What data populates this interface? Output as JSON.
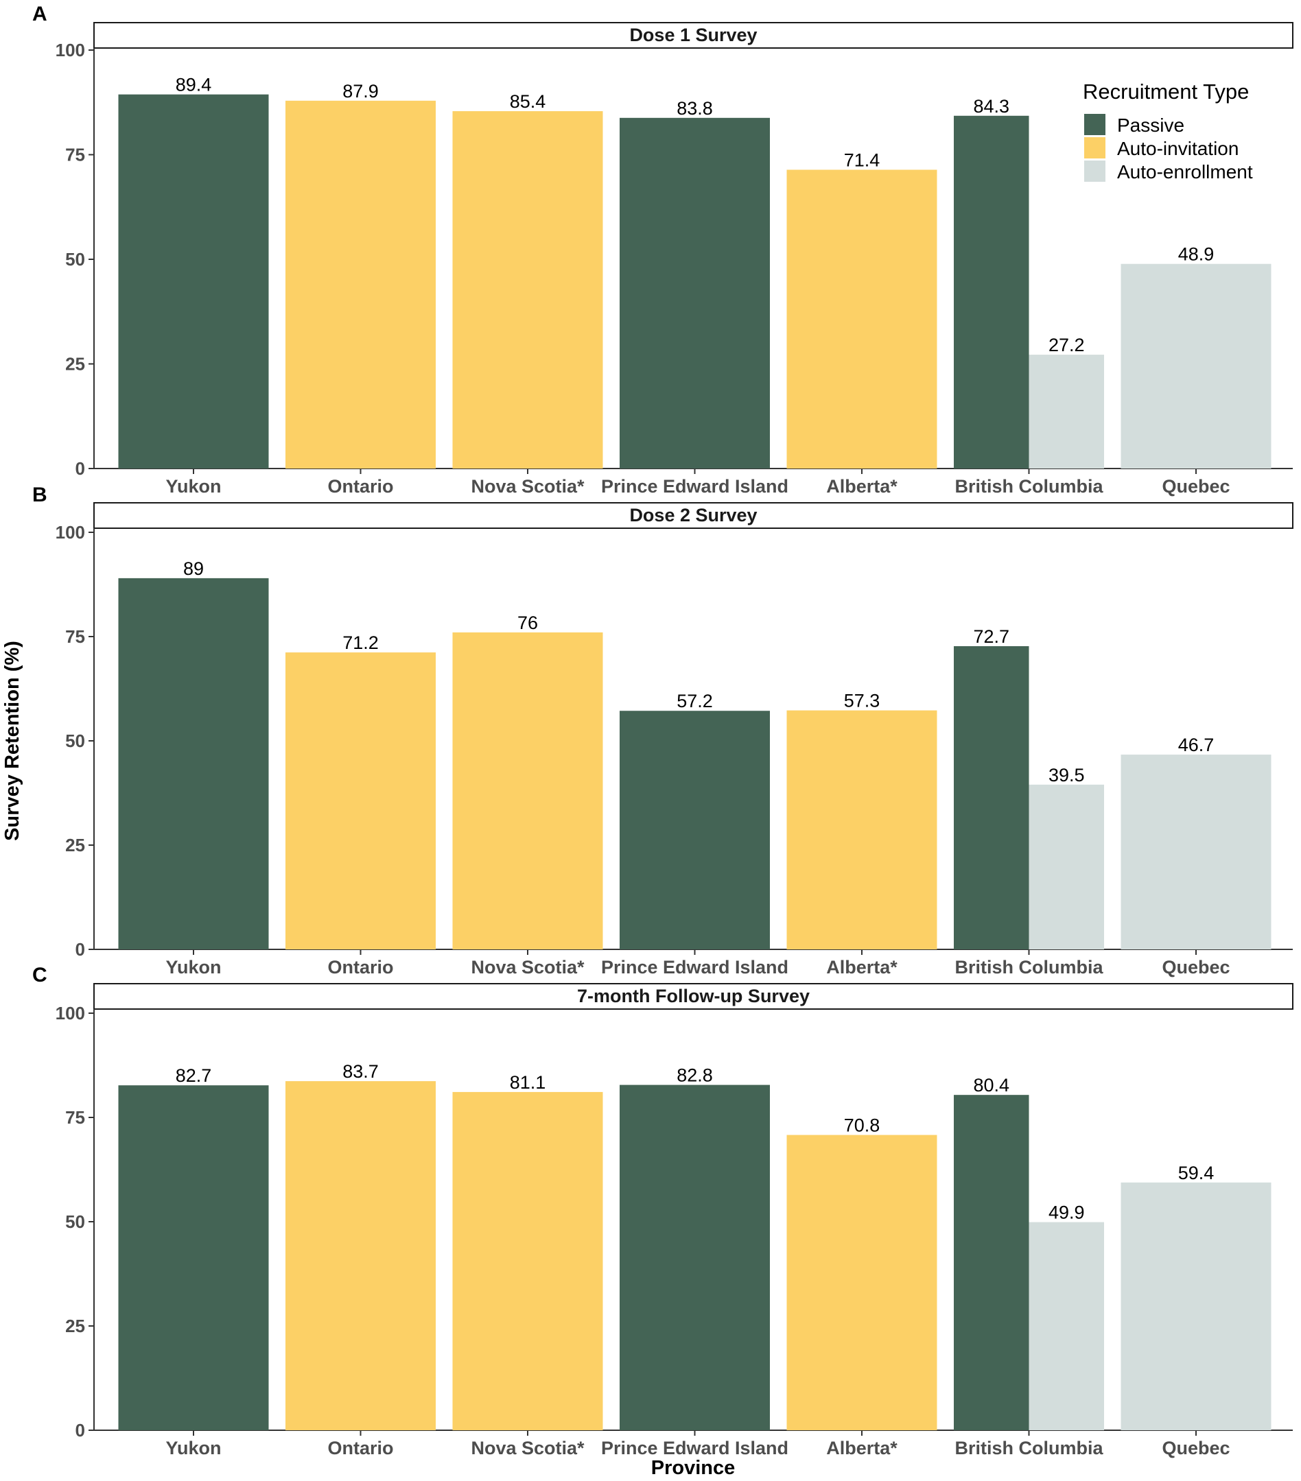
{
  "figure": {
    "ylabel": "Survey Retention (%)",
    "xlabel": "Province",
    "legend": {
      "title": "Recruitment Type",
      "entries": [
        {
          "key": "passive",
          "label": "Passive"
        },
        {
          "key": "auto_invitation",
          "label": "Auto-invitation"
        },
        {
          "key": "auto_enrollment",
          "label": "Auto-enrollment"
        }
      ],
      "placement": "top-right of panel A"
    },
    "colors": {
      "passive": "#446455",
      "auto_invitation": "#FCD066",
      "auto_enrollment": "#D3DDDC",
      "axis": "#333333",
      "tick_text": "#4d4d4d"
    }
  },
  "chart_data": [
    {
      "type": "bar",
      "panel_letter": "A",
      "title": "Dose 1 Survey",
      "categories": [
        "Yukon",
        "Ontario",
        "Nova Scotia*",
        "Prince Edward Island",
        "Alberta*",
        "British Columbia",
        "Quebec"
      ],
      "yticks": [
        "0",
        "25",
        "50",
        "75",
        "100"
      ],
      "ylim": [
        0,
        100
      ],
      "bars": [
        {
          "category": "Yukon",
          "type": "passive",
          "value": 89.4,
          "label": "89.4"
        },
        {
          "category": "Ontario",
          "type": "auto_invitation",
          "value": 87.9,
          "label": "87.9"
        },
        {
          "category": "Nova Scotia*",
          "type": "auto_invitation",
          "value": 85.4,
          "label": "85.4"
        },
        {
          "category": "Prince Edward Island",
          "type": "passive",
          "value": 83.8,
          "label": "83.8"
        },
        {
          "category": "Alberta*",
          "type": "auto_invitation",
          "value": 71.4,
          "label": "71.4"
        },
        {
          "category": "British Columbia",
          "type": "passive",
          "value": 84.3,
          "label": "84.3"
        },
        {
          "category": "British Columbia",
          "type": "auto_enrollment",
          "value": 27.2,
          "label": "27.2"
        },
        {
          "category": "Quebec",
          "type": "auto_enrollment",
          "value": 48.9,
          "label": "48.9"
        }
      ]
    },
    {
      "type": "bar",
      "panel_letter": "B",
      "title": "Dose 2 Survey",
      "categories": [
        "Yukon",
        "Ontario",
        "Nova Scotia*",
        "Prince Edward Island",
        "Alberta*",
        "British Columbia",
        "Quebec"
      ],
      "yticks": [
        "0",
        "25",
        "50",
        "75",
        "100"
      ],
      "ylim": [
        0,
        100
      ],
      "bars": [
        {
          "category": "Yukon",
          "type": "passive",
          "value": 89,
          "label": "89"
        },
        {
          "category": "Ontario",
          "type": "auto_invitation",
          "value": 71.2,
          "label": "71.2"
        },
        {
          "category": "Nova Scotia*",
          "type": "auto_invitation",
          "value": 76,
          "label": "76"
        },
        {
          "category": "Prince Edward Island",
          "type": "passive",
          "value": 57.2,
          "label": "57.2"
        },
        {
          "category": "Alberta*",
          "type": "auto_invitation",
          "value": 57.3,
          "label": "57.3"
        },
        {
          "category": "British Columbia",
          "type": "passive",
          "value": 72.7,
          "label": "72.7"
        },
        {
          "category": "British Columbia",
          "type": "auto_enrollment",
          "value": 39.5,
          "label": "39.5"
        },
        {
          "category": "Quebec",
          "type": "auto_enrollment",
          "value": 46.7,
          "label": "46.7"
        }
      ]
    },
    {
      "type": "bar",
      "panel_letter": "C",
      "title": "7-month Follow-up Survey",
      "categories": [
        "Yukon",
        "Ontario",
        "Nova Scotia*",
        "Prince Edward Island",
        "Alberta*",
        "British Columbia",
        "Quebec"
      ],
      "yticks": [
        "0",
        "25",
        "50",
        "75",
        "100"
      ],
      "ylim": [
        0,
        100
      ],
      "bars": [
        {
          "category": "Yukon",
          "type": "passive",
          "value": 82.7,
          "label": "82.7"
        },
        {
          "category": "Ontario",
          "type": "auto_invitation",
          "value": 83.7,
          "label": "83.7"
        },
        {
          "category": "Nova Scotia*",
          "type": "auto_invitation",
          "value": 81.1,
          "label": "81.1"
        },
        {
          "category": "Prince Edward Island",
          "type": "passive",
          "value": 82.8,
          "label": "82.8"
        },
        {
          "category": "Alberta*",
          "type": "auto_invitation",
          "value": 70.8,
          "label": "70.8"
        },
        {
          "category": "British Columbia",
          "type": "passive",
          "value": 80.4,
          "label": "80.4"
        },
        {
          "category": "British Columbia",
          "type": "auto_enrollment",
          "value": 49.9,
          "label": "49.9"
        },
        {
          "category": "Quebec",
          "type": "auto_enrollment",
          "value": 59.4,
          "label": "59.4"
        }
      ]
    }
  ]
}
